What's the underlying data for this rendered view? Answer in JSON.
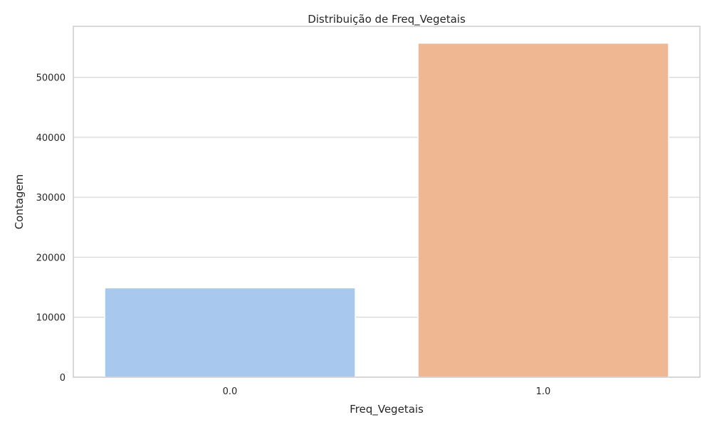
{
  "chart_data": {
    "type": "bar",
    "title": "Distribuição de Freq_Vegetais",
    "xlabel": "Freq_Vegetais",
    "ylabel": "Contagem",
    "categories": [
      "0.0",
      "1.0"
    ],
    "values": [
      14900,
      55700
    ],
    "ylim": [
      0,
      58500
    ],
    "yticks": [
      "0",
      "10000",
      "20000",
      "30000",
      "40000",
      "50000"
    ],
    "ytick_values": [
      0,
      10000,
      20000,
      30000,
      40000,
      50000
    ],
    "colors": [
      "#a9c8ed",
      "#f0b892"
    ],
    "grid": true,
    "legend": "none"
  }
}
